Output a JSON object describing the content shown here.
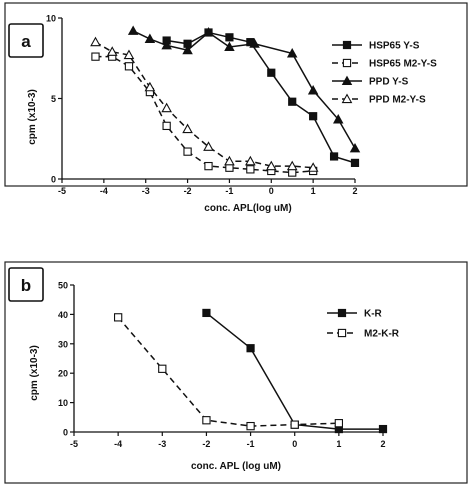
{
  "chart_data": [
    {
      "panel_label": "a",
      "type": "line",
      "xlabel": "conc. APL(log uM)",
      "ylabel": "cpm (x10-3)",
      "xlim": [
        -5,
        2
      ],
      "ylim": [
        0,
        10
      ],
      "x_ticks": [
        "-5",
        "-4",
        "-3",
        "-2",
        "-1",
        "0",
        "1",
        "2"
      ],
      "y_ticks": [
        "0",
        "5",
        "10"
      ],
      "legend_position": "right",
      "grid": false,
      "series": [
        {
          "name": "HSP65  Y-S",
          "marker": "square-filled",
          "dashed": false,
          "x": [
            -2.5,
            -2,
            -1.5,
            -1,
            -0.5,
            0,
            0.5,
            1,
            1.5,
            2
          ],
          "y": [
            8.6,
            8.4,
            9.1,
            8.8,
            8.5,
            6.6,
            4.8,
            3.9,
            1.4,
            1.0
          ]
        },
        {
          "name": "HSP65  M2-Y-S",
          "marker": "square-open",
          "dashed": true,
          "x": [
            -4.2,
            -3.8,
            -3.4,
            -2.9,
            -2.5,
            -2,
            -1.5,
            -1,
            -0.5,
            0,
            0.5,
            1
          ],
          "y": [
            7.6,
            7.6,
            7.0,
            5.4,
            3.3,
            1.7,
            0.8,
            0.7,
            0.6,
            0.5,
            0.4,
            0.5
          ]
        },
        {
          "name": "PPD  Y-S",
          "marker": "triangle-filled",
          "dashed": false,
          "x": [
            -3.3,
            -2.9,
            -2.5,
            -2,
            -1.5,
            -1,
            -0.4,
            0.5,
            1,
            1.6,
            2
          ],
          "y": [
            9.2,
            8.7,
            8.3,
            8.0,
            9.1,
            8.2,
            8.4,
            7.8,
            5.5,
            3.7,
            1.9
          ]
        },
        {
          "name": "PPD  M2-Y-S",
          "marker": "triangle-open",
          "dashed": true,
          "x": [
            -4.2,
            -3.8,
            -3.4,
            -2.9,
            -2.5,
            -2,
            -1.5,
            -1,
            -0.5,
            0,
            0.5,
            1
          ],
          "y": [
            8.5,
            7.9,
            7.7,
            5.7,
            4.4,
            3.1,
            2.0,
            1.1,
            1.1,
            0.8,
            0.8,
            0.7
          ]
        }
      ]
    },
    {
      "panel_label": "b",
      "type": "line",
      "xlabel": "conc. APL (log uM)",
      "ylabel": "cpm (x10-3)",
      "xlim": [
        -5,
        2
      ],
      "ylim": [
        0,
        50
      ],
      "x_ticks": [
        "-5",
        "-4",
        "-3",
        "-2",
        "-1",
        "0",
        "1",
        "2"
      ],
      "y_ticks": [
        "0",
        "10",
        "20",
        "30",
        "40",
        "50"
      ],
      "legend_position": "right",
      "grid": false,
      "series": [
        {
          "name": "K-R",
          "marker": "square-filled",
          "dashed": false,
          "x": [
            -2,
            -1,
            0,
            1,
            2
          ],
          "y": [
            40.5,
            28.5,
            2.5,
            1.0,
            1.0
          ]
        },
        {
          "name": "M2-K-R",
          "marker": "square-open",
          "dashed": true,
          "x": [
            -4,
            -3,
            -2,
            -1,
            0,
            1
          ],
          "y": [
            39.0,
            21.5,
            4.0,
            2.0,
            2.5,
            3.0
          ]
        }
      ]
    }
  ]
}
